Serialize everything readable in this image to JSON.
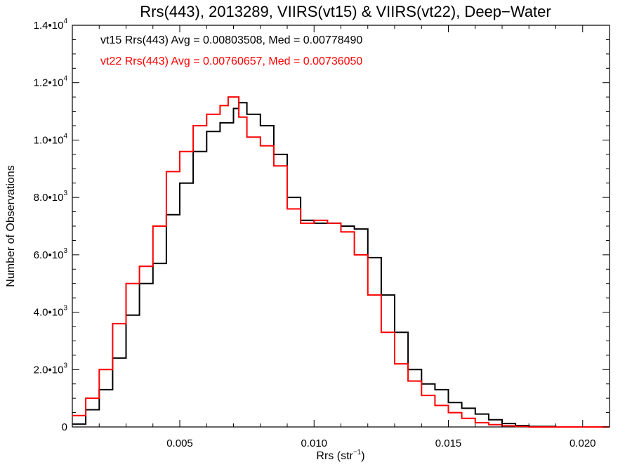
{
  "chart_data": {
    "type": "line",
    "title": "Rrs(443), 2013289, VIIRS(vt15) & VIIRS(vt22), Deep−Water",
    "xlabel": "Rrs (str",
    "xlabel_exp": "−1",
    "xlabel_close": ")",
    "ylabel": "Number of Observations",
    "xlim": [
      0.001,
      0.021
    ],
    "ylim": [
      0,
      14000
    ],
    "grid": false,
    "x_ticks": [
      {
        "value": 0.005,
        "label": "0.005"
      },
      {
        "value": 0.01,
        "label": "0.010"
      },
      {
        "value": 0.015,
        "label": "0.015"
      },
      {
        "value": 0.02,
        "label": "0.020"
      }
    ],
    "y_ticks": [
      {
        "value": 0,
        "mant": "0",
        "exp": ""
      },
      {
        "value": 2000,
        "mant": "2.0•10",
        "exp": "3"
      },
      {
        "value": 4000,
        "mant": "4.0•10",
        "exp": "3"
      },
      {
        "value": 6000,
        "mant": "6.0•10",
        "exp": "3"
      },
      {
        "value": 8000,
        "mant": "8.0•10",
        "exp": "3"
      },
      {
        "value": 10000,
        "mant": "1.0•10",
        "exp": "4"
      },
      {
        "value": 12000,
        "mant": "1.2•10",
        "exp": "4"
      },
      {
        "value": 14000,
        "mant": "1.4•10",
        "exp": "4"
      }
    ],
    "annotations": [
      {
        "text": "vt15 Rrs(443) Avg = 0.00803508, Med = 0.00778490",
        "color": "#000000"
      },
      {
        "text": "vt22 Rrs(443) Avg = 0.00760657, Med = 0.00736050",
        "color": "#ff0000"
      }
    ],
    "series": [
      {
        "color": "#000000",
        "x": [
          0.001,
          0.0015,
          0.002,
          0.0025,
          0.003,
          0.0035,
          0.004,
          0.0045,
          0.005,
          0.0055,
          0.006,
          0.0065,
          0.007,
          0.0072,
          0.0075,
          0.008,
          0.0085,
          0.009,
          0.0095,
          0.01,
          0.0105,
          0.011,
          0.0115,
          0.012,
          0.0125,
          0.013,
          0.0135,
          0.014,
          0.0145,
          0.015,
          0.0155,
          0.016,
          0.0165,
          0.017,
          0.0175,
          0.018,
          0.019,
          0.02,
          0.021
        ],
        "values": [
          100,
          600,
          1300,
          2400,
          3900,
          5000,
          5700,
          7400,
          8500,
          9600,
          10300,
          10600,
          11100,
          11300,
          10900,
          10500,
          9500,
          8000,
          7200,
          7100,
          7100,
          7000,
          6900,
          5900,
          4600,
          3300,
          2000,
          1500,
          1300,
          850,
          650,
          450,
          250,
          120,
          50,
          20,
          0,
          0,
          0
        ]
      },
      {
        "color": "#ff0000",
        "x": [
          0.001,
          0.0015,
          0.002,
          0.0025,
          0.003,
          0.0035,
          0.004,
          0.0045,
          0.005,
          0.0055,
          0.006,
          0.0065,
          0.0068,
          0.0072,
          0.0075,
          0.008,
          0.0085,
          0.009,
          0.0095,
          0.01,
          0.0105,
          0.011,
          0.0115,
          0.012,
          0.0125,
          0.013,
          0.0135,
          0.014,
          0.0145,
          0.015,
          0.0155,
          0.016,
          0.0165,
          0.017,
          0.0175,
          0.018,
          0.019,
          0.02,
          0.021
        ],
        "values": [
          400,
          1000,
          2000,
          3600,
          5000,
          5600,
          7000,
          8900,
          9600,
          10500,
          10900,
          11200,
          11500,
          10800,
          10100,
          9800,
          9100,
          7600,
          7100,
          7200,
          7100,
          6800,
          6000,
          4600,
          3300,
          2200,
          1600,
          1100,
          750,
          500,
          300,
          150,
          80,
          40,
          20,
          0,
          0,
          0,
          0
        ]
      }
    ]
  }
}
